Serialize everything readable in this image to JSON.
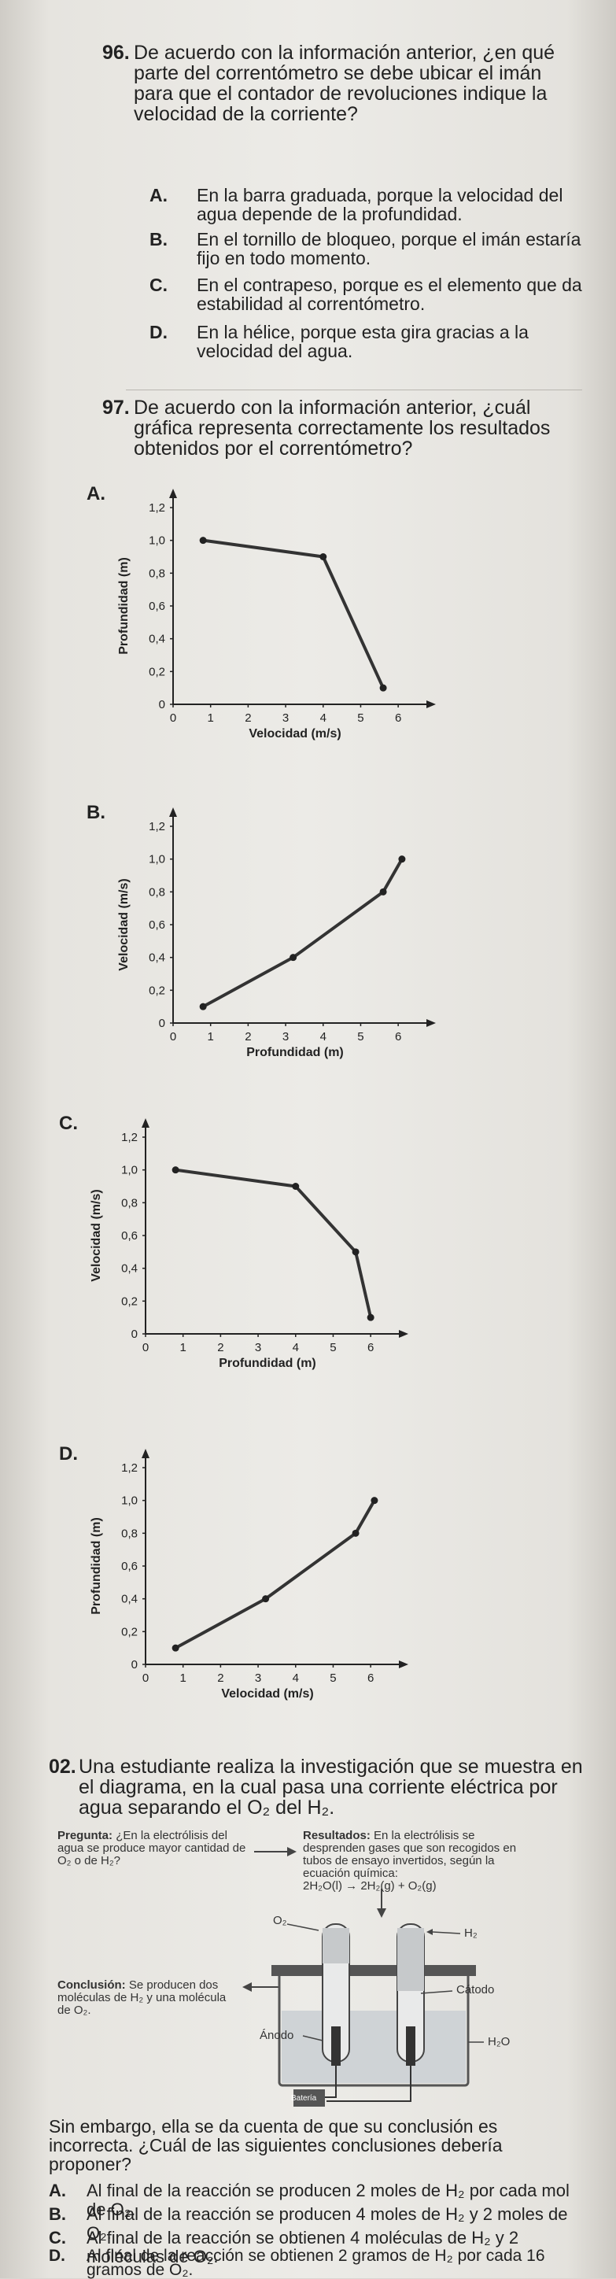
{
  "q96": {
    "number": "96.",
    "stem": "De acuerdo con la información anterior, ¿en qué parte del correntómetro se debe ubicar el imán para que el contador de revoluciones indique la velocidad de la corriente?",
    "options": [
      {
        "letter": "A.",
        "text": "En la barra graduada, porque la velocidad del agua depende de la profundidad."
      },
      {
        "letter": "B.",
        "text": "En el tornillo de bloqueo, porque el imán estaría fijo en todo momento."
      },
      {
        "letter": "C.",
        "text": "En el contrapeso, porque es el elemento que da estabilidad al correntómetro."
      },
      {
        "letter": "D.",
        "text": "En la hélice, porque esta gira gracias a la velocidad del agua."
      }
    ]
  },
  "q97": {
    "number": "97.",
    "stem": "De acuerdo con la información anterior, ¿cuál gráfica representa correctamente los resultados obtenidos por el correntómetro?"
  },
  "chart_data": [
    {
      "letter": "A.",
      "type": "line",
      "xlabel": "Velocidad (m/s)",
      "ylabel": "Profundidad (m)",
      "xticks": [
        "0",
        "1",
        "2",
        "3",
        "4",
        "5",
        "6"
      ],
      "yticks": [
        "0",
        "0,2",
        "0,4",
        "0,6",
        "0,8",
        "1,0",
        "1,2"
      ],
      "xlim": [
        0,
        6.5
      ],
      "ylim": [
        0,
        1.2
      ],
      "x": [
        0.8,
        4.0,
        5.6
      ],
      "y": [
        1.0,
        0.9,
        0.1
      ]
    },
    {
      "letter": "B.",
      "type": "line",
      "xlabel": "Profundidad (m)",
      "ylabel": "Velocidad (m/s)",
      "xticks": [
        "0",
        "1",
        "2",
        "3",
        "4",
        "5",
        "6"
      ],
      "yticks": [
        "0",
        "0,2",
        "0,4",
        "0,6",
        "0,8",
        "1,0",
        "1,2"
      ],
      "xlim": [
        0,
        6.5
      ],
      "ylim": [
        0,
        1.2
      ],
      "x": [
        0.8,
        3.2,
        5.6,
        6.1
      ],
      "y": [
        0.1,
        0.4,
        0.8,
        1.0
      ]
    },
    {
      "letter": "C.",
      "type": "line",
      "xlabel": "Profundidad (m)",
      "ylabel": "Velocidad (m/s)",
      "xticks": [
        "0",
        "1",
        "2",
        "3",
        "4",
        "5",
        "6"
      ],
      "yticks": [
        "0",
        "0,2",
        "0,4",
        "0,6",
        "0,8",
        "1,0",
        "1,2"
      ],
      "xlim": [
        0,
        6.5
      ],
      "ylim": [
        0,
        1.2
      ],
      "x": [
        0.8,
        4.0,
        5.6,
        6.0
      ],
      "y": [
        1.0,
        0.9,
        0.5,
        0.1
      ]
    },
    {
      "letter": "D.",
      "type": "line",
      "xlabel": "Velocidad (m/s)",
      "ylabel": "Profundidad (m)",
      "xticks": [
        "0",
        "1",
        "2",
        "3",
        "4",
        "5",
        "6"
      ],
      "yticks": [
        "0",
        "0,2",
        "0,4",
        "0,6",
        "0,8",
        "1,0",
        "1,2"
      ],
      "xlim": [
        0,
        6.5
      ],
      "ylim": [
        0,
        1.2
      ],
      "x": [
        0.8,
        3.2,
        5.6,
        6.1
      ],
      "y": [
        0.1,
        0.4,
        0.8,
        1.0
      ]
    }
  ],
  "q02": {
    "number": "02.",
    "stem": "Una estudiante realiza la investigación que se muestra en el diagrama, en la cual pasa una corriente eléctrica por agua separando el O₂ del H₂.",
    "diagram": {
      "pregunta_title": "Pregunta:",
      "pregunta_text": "¿En la electrólisis del agua se produce mayor cantidad de O₂ o de H₂?",
      "resultados_title": "Resultados:",
      "resultados_text": "En la electrólisis se desprenden gases que son recogidos en tubos de ensayo invertidos, según la ecuación química:",
      "equation": "2H₂O(l) → 2H₂(g) + O₂(g)",
      "conclusion_title": "Conclusión:",
      "conclusion_text": "Se producen dos moléculas de H₂ y una molécula de O₂.",
      "labels": {
        "o2": "O₂",
        "h2": "H₂",
        "anodo": "Ánodo",
        "catodo": "Cátodo",
        "h2o": "H₂O",
        "bateria": "Batería"
      }
    },
    "followup": "Sin embargo, ella se da cuenta de que su conclusión es incorrecta. ¿Cuál de las siguientes conclusiones debería proponer?",
    "options": [
      {
        "letter": "A.",
        "text": "Al final de la reacción se producen 2 moles de H₂ por cada mol de O₂."
      },
      {
        "letter": "B.",
        "text": "Al final de la reacción se producen 4 moles de H₂ y 2 moles de O₂."
      },
      {
        "letter": "C.",
        "text": "Al final de la reacción se obtienen 4 moléculas de H₂ y 2 moléculas de O₂."
      },
      {
        "letter": "D.",
        "text": "Al final de la reacción se obtienen 2 gramos de H₂ por cada 16 gramos de O₂."
      }
    ]
  }
}
